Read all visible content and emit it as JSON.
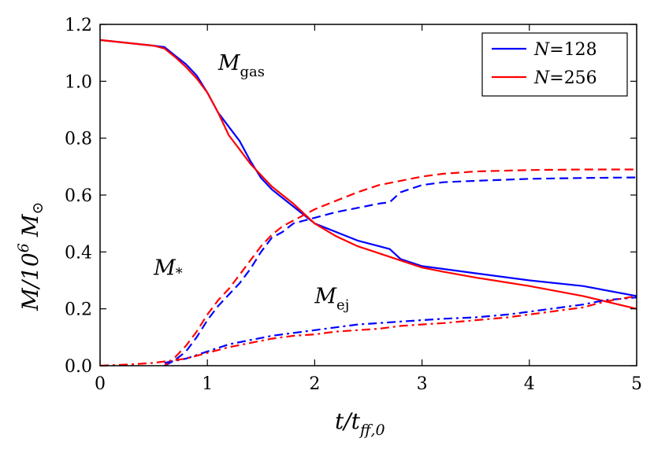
{
  "chart_data": {
    "type": "line",
    "title": "",
    "xlabel": {
      "base": "t/t",
      "sub": "ff,0"
    },
    "ylabel": {
      "base": "M/10",
      "sup": "6",
      "unit": "M",
      "unit_sub": "⊙"
    },
    "xlim": [
      0,
      5
    ],
    "ylim": [
      0,
      1.2
    ],
    "xticks": [
      0,
      1,
      2,
      3,
      4,
      5
    ],
    "xtick_labels": [
      "0",
      "1",
      "2",
      "3",
      "4",
      "5"
    ],
    "yticks": [
      0.0,
      0.2,
      0.4,
      0.6,
      0.8,
      1.0,
      1.2
    ],
    "ytick_labels": [
      "0.0",
      "0.2",
      "0.4",
      "0.6",
      "0.8",
      "1.0",
      "1.2"
    ],
    "grid": false,
    "legend_position": "top-right",
    "legend": [
      {
        "label_var": "N",
        "label_eq": "=",
        "label_val": "128",
        "color": "#0000ff"
      },
      {
        "label_var": "N",
        "label_eq": "=",
        "label_val": "256",
        "color": "#ff0000"
      }
    ],
    "annotations": [
      {
        "base": "M",
        "sub": "gas",
        "x": 1.1,
        "y": 1.04
      },
      {
        "base": "M",
        "sub": "*",
        "x": 0.5,
        "y": 0.32
      },
      {
        "base": "M",
        "sub": "ej",
        "x": 2.0,
        "y": 0.22
      }
    ],
    "series": [
      {
        "name": "M_gas N=128",
        "color": "#0000ff",
        "style": "solid",
        "x": [
          0,
          0.5,
          0.6,
          0.7,
          0.8,
          0.9,
          1.0,
          1.1,
          1.2,
          1.3,
          1.4,
          1.5,
          1.6,
          1.7,
          1.8,
          2.0,
          2.2,
          2.4,
          2.6,
          2.7,
          2.8,
          3.0,
          3.2,
          3.5,
          4.0,
          4.5,
          5.0
        ],
        "y": [
          1.145,
          1.125,
          1.12,
          1.09,
          1.06,
          1.02,
          0.96,
          0.89,
          0.84,
          0.79,
          0.72,
          0.66,
          0.62,
          0.59,
          0.56,
          0.5,
          0.47,
          0.44,
          0.42,
          0.41,
          0.375,
          0.35,
          0.34,
          0.325,
          0.3,
          0.28,
          0.245
        ]
      },
      {
        "name": "M_gas N=256",
        "color": "#ff0000",
        "style": "solid",
        "x": [
          0,
          0.5,
          0.6,
          0.7,
          0.8,
          0.9,
          1.0,
          1.1,
          1.2,
          1.3,
          1.4,
          1.5,
          1.6,
          1.7,
          1.8,
          2.0,
          2.2,
          2.4,
          2.6,
          2.8,
          3.0,
          3.2,
          3.5,
          4.0,
          4.5,
          5.0
        ],
        "y": [
          1.145,
          1.125,
          1.115,
          1.085,
          1.05,
          1.01,
          0.96,
          0.89,
          0.81,
          0.76,
          0.71,
          0.67,
          0.63,
          0.6,
          0.57,
          0.5,
          0.455,
          0.42,
          0.395,
          0.37,
          0.345,
          0.33,
          0.31,
          0.28,
          0.245,
          0.2
        ]
      },
      {
        "name": "M_* N=128",
        "color": "#0000ff",
        "style": "dashed",
        "x": [
          0.6,
          0.7,
          0.8,
          0.9,
          1.0,
          1.1,
          1.2,
          1.3,
          1.4,
          1.5,
          1.6,
          1.7,
          1.8,
          1.9,
          2.0,
          2.2,
          2.4,
          2.6,
          2.7,
          2.8,
          3.0,
          3.2,
          3.5,
          4.0,
          4.5,
          5.0
        ],
        "y": [
          0.0,
          0.02,
          0.05,
          0.1,
          0.16,
          0.21,
          0.25,
          0.29,
          0.34,
          0.4,
          0.45,
          0.47,
          0.5,
          0.51,
          0.52,
          0.54,
          0.555,
          0.57,
          0.575,
          0.61,
          0.635,
          0.645,
          0.65,
          0.657,
          0.66,
          0.662
        ]
      },
      {
        "name": "M_* N=256",
        "color": "#ff0000",
        "style": "dashed",
        "x": [
          0.6,
          0.7,
          0.8,
          0.9,
          1.0,
          1.1,
          1.2,
          1.3,
          1.4,
          1.5,
          1.6,
          1.7,
          1.8,
          1.9,
          2.0,
          2.2,
          2.4,
          2.6,
          2.8,
          3.0,
          3.2,
          3.5,
          4.0,
          4.5,
          5.0
        ],
        "y": [
          0.0,
          0.03,
          0.07,
          0.12,
          0.18,
          0.23,
          0.27,
          0.32,
          0.37,
          0.42,
          0.46,
          0.49,
          0.51,
          0.53,
          0.55,
          0.58,
          0.61,
          0.635,
          0.65,
          0.665,
          0.675,
          0.683,
          0.688,
          0.69,
          0.69
        ]
      },
      {
        "name": "M_ej N=128",
        "color": "#0000ff",
        "style": "dashdot",
        "x": [
          0.6,
          0.8,
          1.0,
          1.2,
          1.4,
          1.6,
          1.8,
          2.0,
          2.2,
          2.4,
          2.6,
          2.8,
          3.0,
          3.2,
          3.5,
          3.8,
          4.0,
          4.2,
          4.5,
          4.7,
          5.0
        ],
        "y": [
          0.01,
          0.025,
          0.05,
          0.075,
          0.09,
          0.105,
          0.115,
          0.125,
          0.135,
          0.145,
          0.15,
          0.155,
          0.16,
          0.165,
          0.17,
          0.18,
          0.19,
          0.2,
          0.215,
          0.23,
          0.24
        ]
      },
      {
        "name": "M_ej N=256",
        "color": "#ff0000",
        "style": "dashdot",
        "x": [
          0.0,
          0.3,
          0.5,
          0.6,
          0.8,
          1.0,
          1.2,
          1.4,
          1.6,
          1.8,
          2.0,
          2.2,
          2.4,
          2.6,
          2.8,
          3.0,
          3.2,
          3.5,
          3.8,
          4.0,
          4.2,
          4.5,
          4.7,
          5.0
        ],
        "y": [
          0.0,
          0.005,
          0.01,
          0.015,
          0.025,
          0.045,
          0.065,
          0.08,
          0.095,
          0.105,
          0.11,
          0.12,
          0.125,
          0.13,
          0.14,
          0.145,
          0.15,
          0.16,
          0.17,
          0.18,
          0.19,
          0.205,
          0.225,
          0.245
        ]
      }
    ]
  }
}
